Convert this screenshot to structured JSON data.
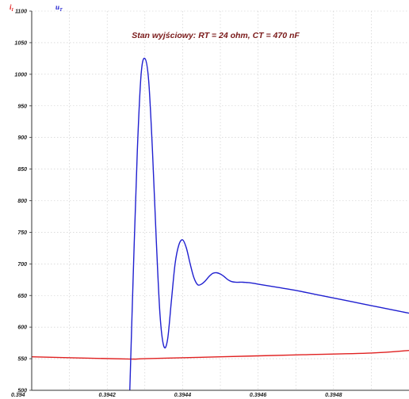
{
  "chart_data": {
    "type": "line",
    "title": "Stan wyjściowy: RT = 24 ohm,  CT = 470 nF",
    "xlabel": "",
    "ylabel": "",
    "xlim": [
      0.394,
      0.395
    ],
    "ylim": [
      500,
      1100
    ],
    "x_ticks": [
      "0.394",
      "0.3942",
      "0.3944",
      "0.3946",
      "0.3948",
      "0.395"
    ],
    "y_ticks": [
      "500",
      "550",
      "600",
      "650",
      "700",
      "750",
      "800",
      "850",
      "900",
      "950",
      "1000",
      "1050",
      "1100"
    ],
    "grid": true,
    "legend": [
      {
        "label": "iI",
        "base": "i",
        "sub": "I",
        "color": "#e02020"
      },
      {
        "label": "uT",
        "base": "u",
        "sub": "T",
        "color": "#2020d0"
      }
    ],
    "series": [
      {
        "name": "iI",
        "color": "#e02020",
        "x": [
          0.394,
          0.39425,
          0.3943,
          0.3945,
          0.3947,
          0.3949,
          0.395
        ],
        "y": [
          553,
          549.5,
          550,
          553,
          556,
          559,
          563
        ]
      },
      {
        "name": "uT",
        "color": "#2020d0",
        "x": [
          0.39426,
          0.39427,
          0.39428,
          0.39429,
          0.3943,
          0.39431,
          0.39432,
          0.39433,
          0.39434,
          0.39435,
          0.39436,
          0.39437,
          0.39438,
          0.39439,
          0.3944,
          0.39441,
          0.39442,
          0.39443,
          0.39444,
          0.39445,
          0.39446,
          0.39447,
          0.39448,
          0.39449,
          0.3945,
          0.39451,
          0.39452,
          0.39453,
          0.39454,
          0.39455,
          0.39456,
          0.39457,
          0.39458,
          0.3946,
          0.39465,
          0.3947,
          0.39475,
          0.3948,
          0.39485,
          0.3949,
          0.39495,
          0.395
        ],
        "y": [
          500,
          700,
          880,
          1000,
          1025,
          990,
          880,
          740,
          620,
          570,
          580,
          640,
          700,
          730,
          738,
          725,
          700,
          678,
          667,
          668,
          673,
          680,
          685,
          686,
          684,
          680,
          675,
          672,
          671,
          671,
          671,
          670.5,
          670,
          668,
          663,
          658,
          652,
          646,
          640,
          634,
          628,
          622
        ]
      }
    ]
  }
}
